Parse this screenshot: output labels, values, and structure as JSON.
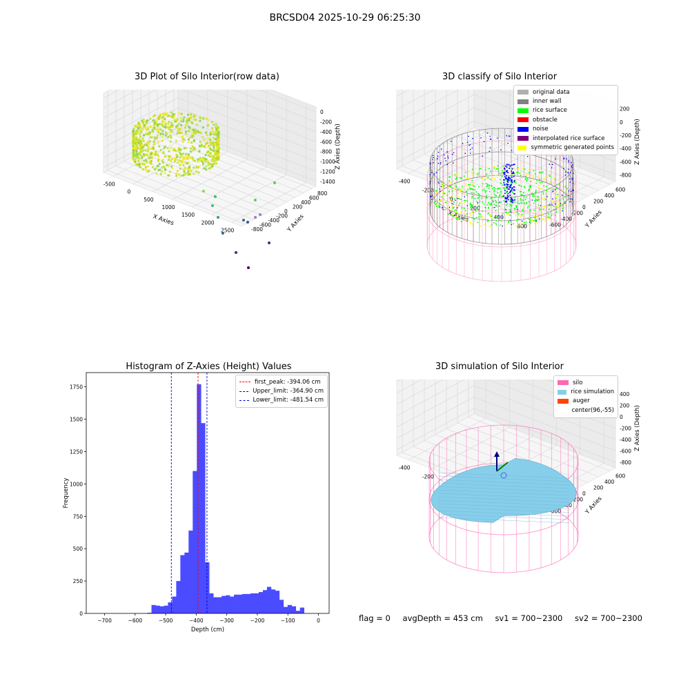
{
  "figure": {
    "suptitle": "BRCSD04 2025-10-29 06:25:30"
  },
  "chart_data": [
    {
      "type": "scatter",
      "title": "3D Plot of Silo Interior(row data)",
      "xlabel": "X Axies",
      "ylabel": "Y Axies",
      "zlabel": "Z Axies (Depth)",
      "xticks": [
        "-500",
        "0",
        "500",
        "1000",
        "1500",
        "2000",
        "2500"
      ],
      "yticks": [
        "-800",
        "-600",
        "-400",
        "-200",
        "0",
        "200",
        "400",
        "600",
        "800"
      ],
      "zticks": [
        "0",
        "-200",
        "-400",
        "-600",
        "-800",
        "-1000",
        "-1200",
        "-1400"
      ],
      "grid": true
    },
    {
      "type": "scatter",
      "title": "3D classify of Silo Interior",
      "xlabel": "X Axies",
      "ylabel": "Y Axies",
      "zlabel": "Z Axies (Depth)",
      "xticks": [
        "-400",
        "-200",
        "0",
        "200",
        "400",
        "600"
      ],
      "yticks": [
        "-600",
        "-400",
        "-200",
        "0",
        "200",
        "400",
        "600"
      ],
      "zticks": [
        "200",
        "0",
        "-200",
        "-400",
        "-600",
        "-800"
      ],
      "legend_position": "top-right",
      "legend": [
        {
          "label": "original data",
          "color": "#b0b0b0"
        },
        {
          "label": "inner wall",
          "color": "#808080"
        },
        {
          "label": "rice surface",
          "color": "#00ff00"
        },
        {
          "label": "obstacle",
          "color": "#ff0000"
        },
        {
          "label": "noise",
          "color": "#0000ff"
        },
        {
          "label": "interpolated rice surface",
          "color": "#800080"
        },
        {
          "label": "symmetric generated points",
          "color": "#ffff00"
        }
      ],
      "grid": true
    },
    {
      "type": "bar",
      "title": "Histogram of Z-Axies (Height) Values",
      "xlabel": "Depth (cm)",
      "ylabel": "Frequency",
      "xlim": [
        -760,
        35
      ],
      "ylim": [
        0,
        1860
      ],
      "xticks": [
        -700,
        -600,
        -500,
        -400,
        -300,
        -200,
        -100,
        0
      ],
      "yticks": [
        0,
        250,
        500,
        750,
        1000,
        1250,
        1500,
        1750
      ],
      "bar_color": "#4b4bff",
      "bin_edges_start": -560,
      "bin_width": 13.5,
      "values": [
        5,
        65,
        60,
        55,
        60,
        85,
        130,
        250,
        450,
        470,
        640,
        1100,
        1770,
        1470,
        395,
        155,
        125,
        125,
        135,
        140,
        130,
        145,
        145,
        150,
        150,
        155,
        155,
        165,
        180,
        205,
        185,
        175,
        105,
        50,
        65,
        55,
        20,
        45
      ],
      "lines": [
        {
          "label": "first_peak: -394.06 cm",
          "x": -394.06,
          "color": "#ff0000"
        },
        {
          "label": "Upper_limit: -364.90 cm",
          "x": -364.9,
          "color": "#0000cc"
        },
        {
          "label": "Lower_limit: -481.54 cm",
          "x": -481.54,
          "color": "#0000cc"
        }
      ],
      "legend_position": "top-right",
      "grid": false
    },
    {
      "type": "scatter",
      "title": "3D simulation of Silo Interior",
      "xlabel": "X Axies",
      "ylabel": "Y Axies",
      "zlabel": "Z Axies (Depth)",
      "xticks": [
        "-400",
        "-200",
        "0",
        "200",
        "400",
        "600"
      ],
      "yticks": [
        "-600",
        "-400",
        "-200",
        "0",
        "200",
        "400",
        "600"
      ],
      "zticks": [
        "400",
        "200",
        "0",
        "-200",
        "-400",
        "-600",
        "-800"
      ],
      "legend_position": "top-right",
      "legend": [
        {
          "label": "silo",
          "color": "#ff69b4"
        },
        {
          "label": "rice simulation",
          "color": "#87ceeb"
        },
        {
          "label": "auger",
          "color": "#ff4500"
        },
        {
          "label": "center(96,-55)",
          "color": "#ffffff"
        }
      ],
      "grid": true
    }
  ],
  "status": {
    "flag": "flag = 0",
    "avg_depth": "avgDepth = 453 cm",
    "sv1": "sv1 = 700~2300",
    "sv2": "sv2 = 700~2300"
  }
}
